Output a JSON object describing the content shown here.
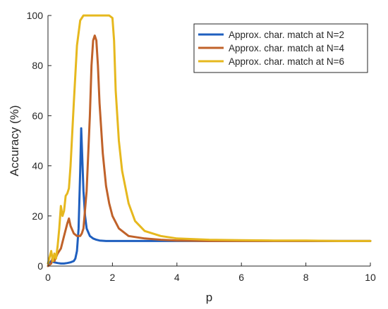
{
  "chart_data": {
    "type": "line",
    "title": "",
    "xlabel": "p",
    "ylabel": "Accuracy (%)",
    "xlim": [
      0,
      10
    ],
    "ylim": [
      0,
      100
    ],
    "x_ticks": [
      0,
      2,
      4,
      6,
      8,
      10
    ],
    "y_ticks": [
      0,
      20,
      40,
      60,
      80,
      100
    ],
    "x_tick_labels": [
      "0",
      "2",
      "4",
      "6",
      "8",
      "10"
    ],
    "y_tick_labels": [
      "0",
      "20",
      "40",
      "60",
      "80",
      "100"
    ],
    "grid": false,
    "legend_position": "top-right",
    "series": [
      {
        "name": "Approx. char. match at N=2",
        "color": "#1f5fbf",
        "x": [
          0,
          0.1,
          0.2,
          0.3,
          0.4,
          0.5,
          0.6,
          0.7,
          0.8,
          0.85,
          0.9,
          0.95,
          1.0,
          1.03,
          1.06,
          1.1,
          1.15,
          1.2,
          1.3,
          1.4,
          1.5,
          1.6,
          1.8,
          2.0,
          2.5,
          3,
          4,
          5,
          6,
          7,
          8,
          9,
          10
        ],
        "y": [
          1,
          2,
          1.5,
          1.2,
          1,
          1,
          1.2,
          1.5,
          2,
          3,
          6,
          15,
          38,
          55,
          45,
          30,
          20,
          15,
          12,
          11,
          10.5,
          10.2,
          10,
          10,
          10,
          10,
          10,
          10,
          10,
          10,
          10,
          10,
          10
        ]
      },
      {
        "name": "Approx. char. match at N=4",
        "color": "#c0622a",
        "x": [
          0,
          0.1,
          0.15,
          0.2,
          0.3,
          0.4,
          0.5,
          0.6,
          0.65,
          0.7,
          0.8,
          0.9,
          1.0,
          1.05,
          1.1,
          1.2,
          1.3,
          1.35,
          1.4,
          1.45,
          1.5,
          1.55,
          1.6,
          1.7,
          1.8,
          1.9,
          2.0,
          2.2,
          2.5,
          3.0,
          3.5,
          4,
          5,
          6,
          7,
          8,
          9,
          10
        ],
        "y": [
          0,
          1,
          4,
          2,
          5,
          7,
          12,
          17,
          19,
          16,
          13,
          12,
          12,
          13,
          15,
          30,
          60,
          80,
          90,
          92,
          90,
          80,
          65,
          45,
          32,
          25,
          20,
          15,
          12,
          11,
          10.5,
          10.2,
          10,
          10,
          10,
          10,
          10,
          10
        ]
      },
      {
        "name": "Approx. char. match at N=6",
        "color": "#e6b81e",
        "x": [
          0,
          0.1,
          0.15,
          0.2,
          0.25,
          0.3,
          0.35,
          0.4,
          0.45,
          0.5,
          0.55,
          0.6,
          0.65,
          0.7,
          0.8,
          0.9,
          1.0,
          1.1,
          1.2,
          1.3,
          1.5,
          1.7,
          1.9,
          2.0,
          2.05,
          2.1,
          2.2,
          2.3,
          2.5,
          2.7,
          3.0,
          3.5,
          4.0,
          5,
          6,
          7,
          8,
          9,
          10
        ],
        "y": [
          1,
          6,
          2,
          5,
          3,
          8,
          15,
          24,
          20,
          22,
          28,
          29,
          31,
          40,
          65,
          88,
          98,
          100,
          100,
          100,
          100,
          100,
          100,
          99,
          90,
          70,
          50,
          38,
          25,
          18,
          14,
          12,
          11,
          10.5,
          10.3,
          10.2,
          10.2,
          10,
          10
        ]
      }
    ]
  }
}
